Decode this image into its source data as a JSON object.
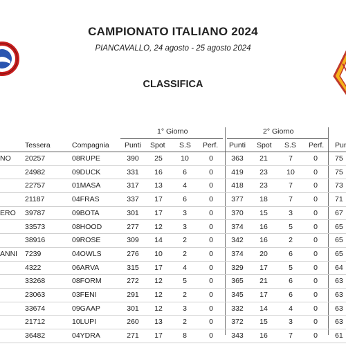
{
  "header": {
    "title": "CAMPIONATO ITALIANO 2024",
    "subtitle": "PIANCAVALLO, 24 agosto - 25 agosto 2024",
    "section": "CLASSIFICA"
  },
  "days": {
    "day1": "1° Giorno",
    "day2": "2° Giorno"
  },
  "columns": {
    "tessera": "Tessera",
    "compagnia": "Compagnia",
    "punti": "Punti",
    "spot": "Spot",
    "ss": "S.S",
    "perf": "Perf.",
    "punti_cut": "Pun"
  },
  "rows": [
    {
      "name_tail": "NO",
      "tessera": "20257",
      "compagnia": "08RUPE",
      "d1": [
        "390",
        "25",
        "10",
        "0"
      ],
      "d2": [
        "363",
        "21",
        "7",
        "0"
      ],
      "tot": "75"
    },
    {
      "name_tail": "",
      "tessera": "24982",
      "compagnia": "09DUCK",
      "d1": [
        "331",
        "16",
        "6",
        "0"
      ],
      "d2": [
        "419",
        "23",
        "10",
        "0"
      ],
      "tot": "75"
    },
    {
      "name_tail": "",
      "tessera": "22757",
      "compagnia": "01MASA",
      "d1": [
        "317",
        "13",
        "4",
        "0"
      ],
      "d2": [
        "418",
        "23",
        "7",
        "0"
      ],
      "tot": "73"
    },
    {
      "name_tail": "",
      "tessera": "21187",
      "compagnia": "04FRAS",
      "d1": [
        "337",
        "17",
        "6",
        "0"
      ],
      "d2": [
        "377",
        "18",
        "7",
        "0"
      ],
      "tot": "71"
    },
    {
      "name_tail": "ERO",
      "tessera": "39787",
      "compagnia": "09BOTA",
      "d1": [
        "301",
        "17",
        "3",
        "0"
      ],
      "d2": [
        "370",
        "15",
        "3",
        "0"
      ],
      "tot": "67"
    },
    {
      "name_tail": "",
      "tessera": "33573",
      "compagnia": "08HOOD",
      "d1": [
        "277",
        "12",
        "3",
        "0"
      ],
      "d2": [
        "374",
        "16",
        "5",
        "0"
      ],
      "tot": "65"
    },
    {
      "name_tail": "",
      "tessera": "38916",
      "compagnia": "09ROSE",
      "d1": [
        "309",
        "14",
        "2",
        "0"
      ],
      "d2": [
        "342",
        "16",
        "2",
        "0"
      ],
      "tot": "65"
    },
    {
      "name_tail": "ANNI",
      "tessera": "7239",
      "compagnia": "04OWLS",
      "d1": [
        "276",
        "10",
        "2",
        "0"
      ],
      "d2": [
        "374",
        "20",
        "6",
        "0"
      ],
      "tot": "65"
    },
    {
      "name_tail": "",
      "tessera": "4322",
      "compagnia": "06ARVA",
      "d1": [
        "315",
        "17",
        "4",
        "0"
      ],
      "d2": [
        "329",
        "17",
        "5",
        "0"
      ],
      "tot": "64"
    },
    {
      "name_tail": "",
      "tessera": "33268",
      "compagnia": "08FORM",
      "d1": [
        "272",
        "12",
        "5",
        "0"
      ],
      "d2": [
        "365",
        "21",
        "6",
        "0"
      ],
      "tot": "63"
    },
    {
      "name_tail": "",
      "tessera": "23063",
      "compagnia": "03FENI",
      "d1": [
        "291",
        "12",
        "2",
        "0"
      ],
      "d2": [
        "345",
        "17",
        "6",
        "0"
      ],
      "tot": "63"
    },
    {
      "name_tail": "",
      "tessera": "33674",
      "compagnia": "09GAAP",
      "d1": [
        "301",
        "12",
        "3",
        "0"
      ],
      "d2": [
        "332",
        "14",
        "4",
        "0"
      ],
      "tot": "63"
    },
    {
      "name_tail": "",
      "tessera": "21712",
      "compagnia": "10LUPI",
      "d1": [
        "260",
        "13",
        "2",
        "0"
      ],
      "d2": [
        "372",
        "15",
        "3",
        "0"
      ],
      "tot": "63"
    },
    {
      "name_tail": "",
      "tessera": "36482",
      "compagnia": "04YDRA",
      "d1": [
        "271",
        "17",
        "8",
        "0"
      ],
      "d2": [
        "343",
        "16",
        "7",
        "0"
      ],
      "tot": "61"
    }
  ]
}
